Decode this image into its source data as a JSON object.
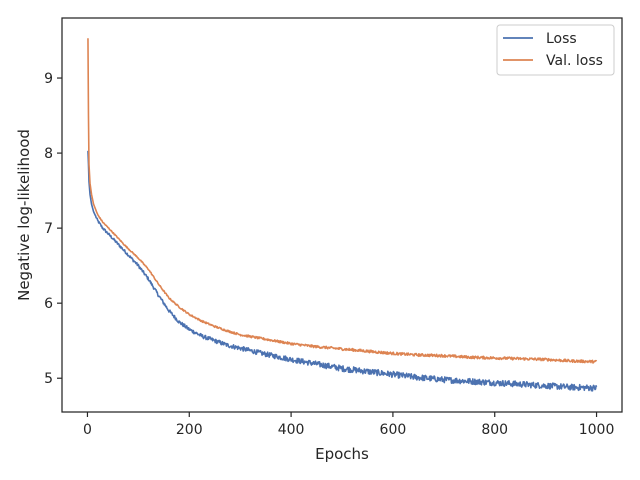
{
  "chart_data": {
    "type": "line",
    "title": "",
    "xlabel": "Epochs",
    "ylabel": "Negative log-likelihood",
    "xlim": [
      -50,
      1050
    ],
    "ylim": [
      4.55,
      9.8
    ],
    "xticks": [
      0,
      200,
      400,
      600,
      800,
      1000
    ],
    "yticks": [
      5,
      6,
      7,
      8,
      9
    ],
    "grid": false,
    "legend": "top-right",
    "series": [
      {
        "name": "Loss",
        "color": "#4c72b0",
        "x": [
          1,
          2,
          3,
          5,
          8,
          12,
          20,
          30,
          50,
          75,
          100,
          120,
          140,
          160,
          180,
          200,
          225,
          250,
          275,
          300,
          350,
          400,
          450,
          500,
          550,
          600,
          650,
          700,
          750,
          800,
          850,
          900,
          950,
          1000
        ],
        "y": [
          8.03,
          7.85,
          7.62,
          7.45,
          7.32,
          7.22,
          7.1,
          7.0,
          6.86,
          6.68,
          6.5,
          6.32,
          6.1,
          5.9,
          5.75,
          5.65,
          5.56,
          5.5,
          5.44,
          5.4,
          5.32,
          5.25,
          5.19,
          5.13,
          5.09,
          5.05,
          5.01,
          4.98,
          4.96,
          4.94,
          4.92,
          4.9,
          4.88,
          4.87
        ]
      },
      {
        "name": "Val. loss",
        "color": "#dd8452",
        "x": [
          1,
          2,
          3,
          5,
          8,
          12,
          20,
          30,
          50,
          75,
          100,
          120,
          140,
          160,
          180,
          200,
          225,
          250,
          275,
          300,
          350,
          400,
          450,
          500,
          550,
          600,
          650,
          700,
          750,
          800,
          850,
          900,
          950,
          1000
        ],
        "y": [
          9.53,
          8.5,
          7.85,
          7.6,
          7.45,
          7.32,
          7.18,
          7.08,
          6.94,
          6.76,
          6.6,
          6.45,
          6.25,
          6.07,
          5.95,
          5.85,
          5.76,
          5.69,
          5.63,
          5.58,
          5.52,
          5.46,
          5.42,
          5.39,
          5.36,
          5.33,
          5.31,
          5.3,
          5.28,
          5.27,
          5.26,
          5.25,
          5.23,
          5.22
        ]
      }
    ]
  }
}
